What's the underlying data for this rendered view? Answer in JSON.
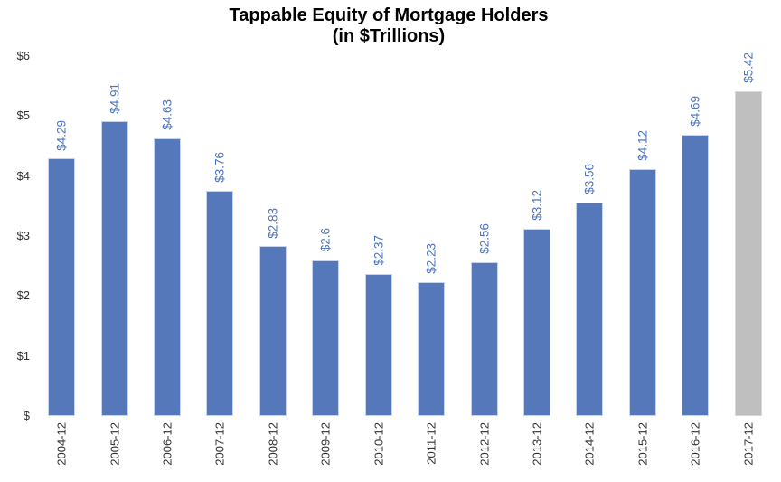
{
  "chart_data": {
    "type": "bar",
    "title": "Tappable Equity of Mortgage Holders",
    "subtitle": "(in $Trillions)",
    "categories": [
      "2004-12",
      "2005-12",
      "2006-12",
      "2007-12",
      "2008-12",
      "2009-12",
      "2010-12",
      "2011-12",
      "2012-12",
      "2013-12",
      "2014-12",
      "2015-12",
      "2016-12",
      "2017-12"
    ],
    "values": [
      4.29,
      4.91,
      4.63,
      3.76,
      2.83,
      2.6,
      2.37,
      2.23,
      2.56,
      3.12,
      3.56,
      4.12,
      4.69,
      5.42
    ],
    "bar_labels": [
      "$4.29",
      "$4.91",
      "$4.63",
      "$3.76",
      "$2.83",
      "$2.6",
      "$2.37",
      "$2.23",
      "$2.56",
      "$3.12",
      "$3.56",
      "$4.12",
      "$4.69",
      "$5.42"
    ],
    "yticks": [
      "$",
      "$1",
      "$2",
      "$3",
      "$4",
      "$5",
      "$6"
    ],
    "ylim": [
      0,
      6
    ],
    "grid": "off",
    "legend": "none",
    "highlight_index": 13,
    "colors": {
      "bar": "#5478BA",
      "bar_border": "#C7D4EC",
      "highlight_bar": "#BFBFBF",
      "highlight_bar_border": "#D8D8D8",
      "value_label": "#4B74C3",
      "axis_text": "#333333",
      "title_text": "#000000"
    }
  }
}
